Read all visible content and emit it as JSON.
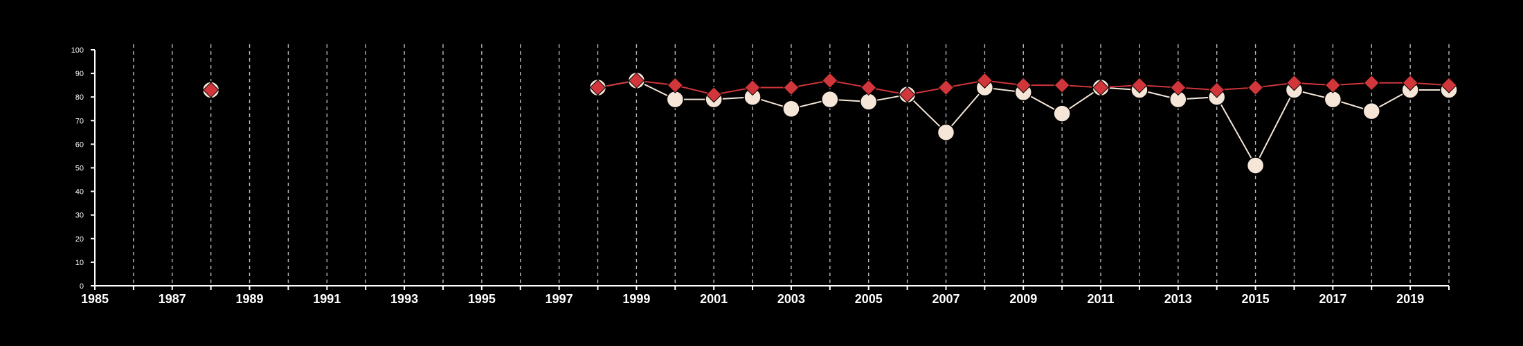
{
  "chart_data": {
    "type": "line",
    "title": "",
    "xlabel": "",
    "ylabel": "",
    "xlim": [
      1985,
      2020
    ],
    "ylim": [
      0,
      100
    ],
    "x_tick_labels": [
      "1985",
      "1987",
      "1989",
      "1991",
      "1993",
      "1995",
      "1997",
      "1999",
      "2001",
      "2003",
      "2005",
      "2007",
      "2009",
      "2011",
      "2013",
      "2015",
      "2017",
      "2019"
    ],
    "y_tick_labels": [
      "0",
      "10",
      "20",
      "30",
      "40",
      "50",
      "60",
      "70",
      "80",
      "90",
      "100"
    ],
    "vertical_grid": "dashed, every year",
    "horizontal_grid": false,
    "legend": "none",
    "colors": {
      "background": "#000000",
      "axis": "#ffffff",
      "grid": "#bbbbbb",
      "series_circles": "#f5e6d8",
      "series_diamonds": "#d0363a"
    },
    "series": [
      {
        "marker": "circle",
        "color": "#f5e6d8",
        "points": [
          {
            "x": 1988,
            "y": 83
          },
          {
            "x": 1998,
            "y": 84
          },
          {
            "x": 1999,
            "y": 87
          },
          {
            "x": 2000,
            "y": 79
          },
          {
            "x": 2001,
            "y": 79
          },
          {
            "x": 2002,
            "y": 80
          },
          {
            "x": 2003,
            "y": 75
          },
          {
            "x": 2004,
            "y": 79
          },
          {
            "x": 2005,
            "y": 78
          },
          {
            "x": 2006,
            "y": 81
          },
          {
            "x": 2007,
            "y": 65
          },
          {
            "x": 2008,
            "y": 84
          },
          {
            "x": 2009,
            "y": 82
          },
          {
            "x": 2010,
            "y": 73
          },
          {
            "x": 2011,
            "y": 84
          },
          {
            "x": 2012,
            "y": 83
          },
          {
            "x": 2013,
            "y": 79
          },
          {
            "x": 2014,
            "y": 80
          },
          {
            "x": 2015,
            "y": 51
          },
          {
            "x": 2016,
            "y": 83
          },
          {
            "x": 2017,
            "y": 79
          },
          {
            "x": 2018,
            "y": 74
          },
          {
            "x": 2019,
            "y": 83
          },
          {
            "x": 2020,
            "y": 83
          }
        ]
      },
      {
        "marker": "diamond",
        "color": "#d0363a",
        "points": [
          {
            "x": 1988,
            "y": 83
          },
          {
            "x": 1998,
            "y": 84
          },
          {
            "x": 1999,
            "y": 87
          },
          {
            "x": 2000,
            "y": 85
          },
          {
            "x": 2001,
            "y": 81
          },
          {
            "x": 2002,
            "y": 84
          },
          {
            "x": 2003,
            "y": 84
          },
          {
            "x": 2004,
            "y": 87
          },
          {
            "x": 2005,
            "y": 84
          },
          {
            "x": 2006,
            "y": 81
          },
          {
            "x": 2007,
            "y": 84
          },
          {
            "x": 2008,
            "y": 87
          },
          {
            "x": 2009,
            "y": 85
          },
          {
            "x": 2010,
            "y": 85
          },
          {
            "x": 2011,
            "y": 84
          },
          {
            "x": 2012,
            "y": 85
          },
          {
            "x": 2013,
            "y": 84
          },
          {
            "x": 2014,
            "y": 83
          },
          {
            "x": 2015,
            "y": 84
          },
          {
            "x": 2016,
            "y": 86
          },
          {
            "x": 2017,
            "y": 85
          },
          {
            "x": 2018,
            "y": 86
          },
          {
            "x": 2019,
            "y": 86
          },
          {
            "x": 2020,
            "y": 85
          }
        ]
      }
    ]
  }
}
